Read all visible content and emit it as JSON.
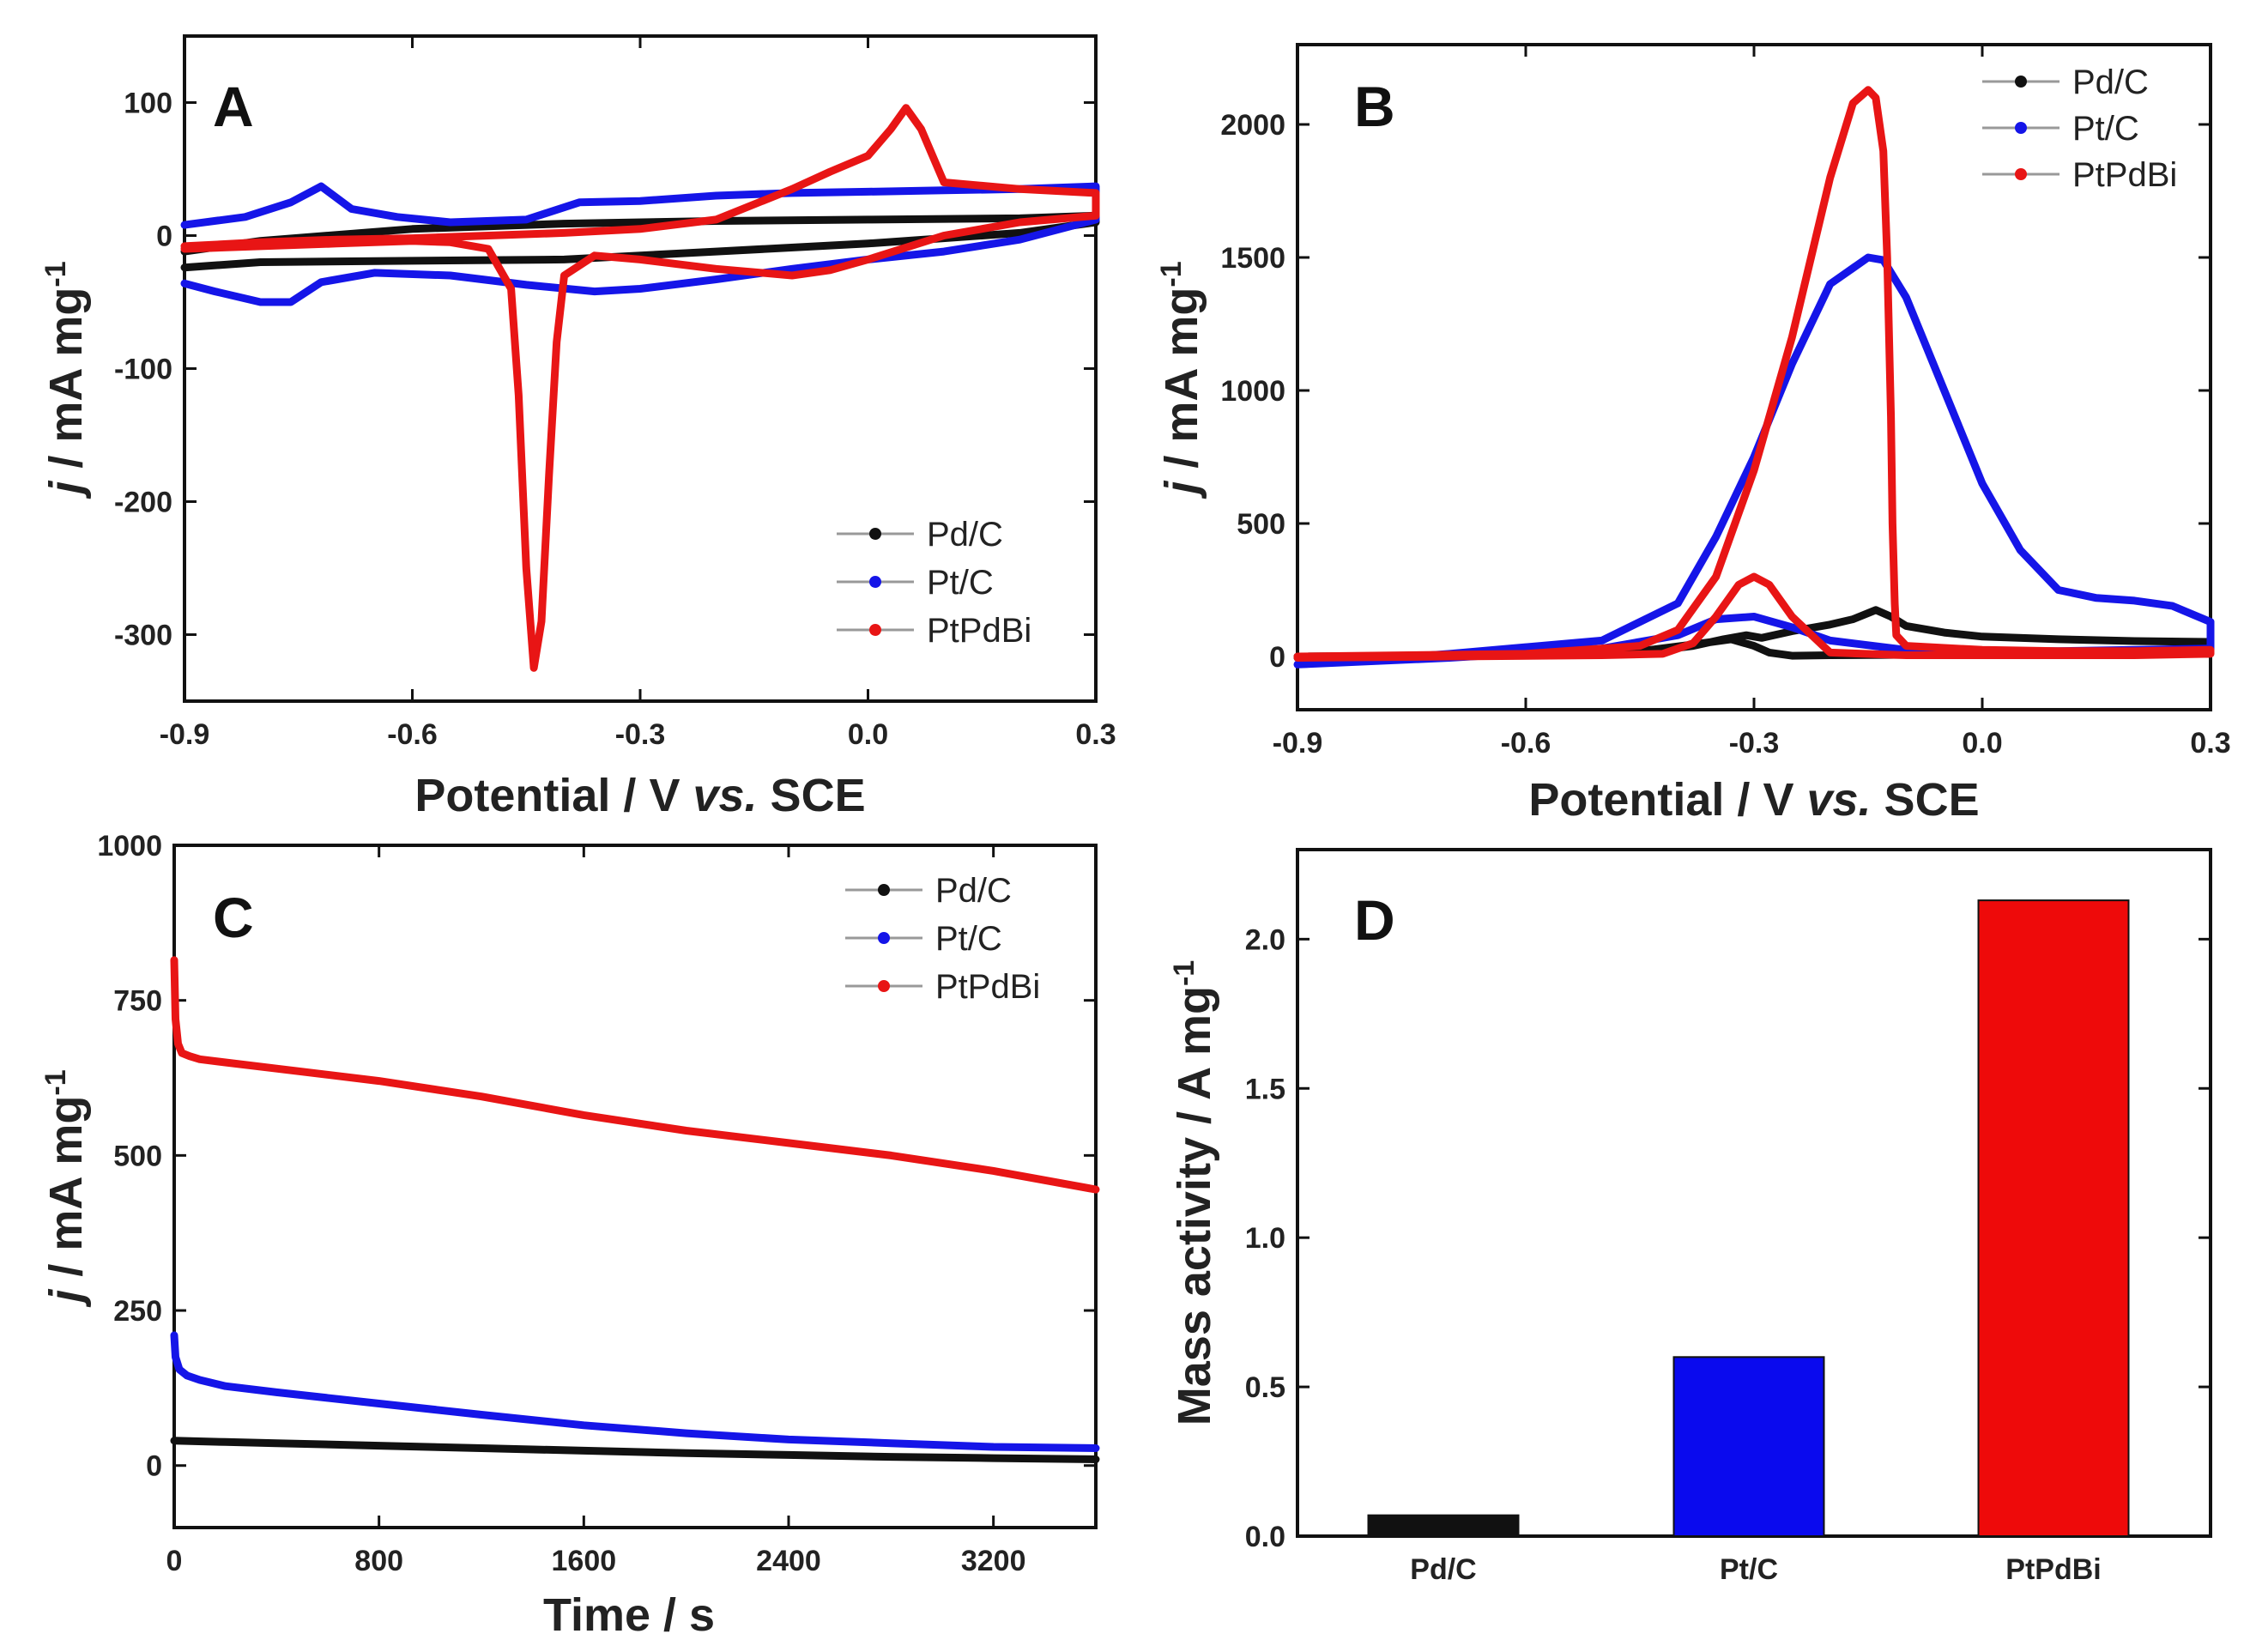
{
  "chart_data": [
    {
      "type": "line",
      "letter": "A",
      "xlabel_pre": "Potential / V ",
      "xlabel_italic": "vs.",
      "xlabel_post": " SCE",
      "ylabel_italic": "j",
      "ylabel_main": " / mA mg",
      "ylabel_sup": "-1",
      "xlim": [
        -0.9,
        0.3
      ],
      "ylim": [
        -350,
        150
      ],
      "xticks": [
        -0.9,
        -0.6,
        -0.3,
        0.0,
        0.3
      ],
      "xtick_labels": [
        "-0.9",
        "-0.6",
        "-0.3",
        "0.0",
        "0.3"
      ],
      "yticks": [
        100,
        0,
        -100,
        -200,
        -300
      ],
      "ytick_labels": [
        "100",
        "0",
        "-100",
        "-200",
        "-300"
      ],
      "legend_position": "bottom-right",
      "series": [
        {
          "name": "Pd/C",
          "color": "#111111",
          "x": [
            -0.9,
            -0.8,
            -0.6,
            -0.4,
            -0.2,
            0.0,
            0.2,
            0.3,
            0.3,
            0.2,
            0.0,
            -0.2,
            -0.4,
            -0.6,
            -0.8,
            -0.9
          ],
          "y": [
            -12,
            -4,
            5,
            9,
            11,
            12,
            13,
            15,
            10,
            2,
            -6,
            -12,
            -18,
            -19,
            -20,
            -24
          ]
        },
        {
          "name": "Pt/C",
          "color": "#1515e8",
          "x": [
            -0.9,
            -0.82,
            -0.76,
            -0.72,
            -0.68,
            -0.62,
            -0.55,
            -0.45,
            -0.38,
            -0.3,
            -0.2,
            -0.1,
            0.0,
            0.1,
            0.2,
            0.3,
            0.3,
            0.2,
            0.1,
            0.0,
            -0.1,
            -0.2,
            -0.3,
            -0.36,
            -0.45,
            -0.55,
            -0.65,
            -0.72,
            -0.76,
            -0.8,
            -0.86,
            -0.9
          ],
          "y": [
            8,
            14,
            25,
            37,
            20,
            14,
            10,
            12,
            25,
            26,
            30,
            32,
            33,
            34,
            35,
            37,
            12,
            -3,
            -12,
            -18,
            -25,
            -33,
            -40,
            -42,
            -37,
            -30,
            -28,
            -35,
            -50,
            -50,
            -42,
            -36
          ]
        },
        {
          "name": "PtPdBi",
          "color": "#e81515",
          "x": [
            -0.9,
            -0.8,
            -0.7,
            -0.6,
            -0.5,
            -0.4,
            -0.3,
            -0.2,
            -0.1,
            -0.05,
            0.0,
            0.03,
            0.05,
            0.07,
            0.1,
            0.2,
            0.3,
            0.3,
            0.2,
            0.1,
            0.0,
            -0.05,
            -0.1,
            -0.2,
            -0.3,
            -0.36,
            -0.4,
            -0.41,
            -0.42,
            -0.43,
            -0.44,
            -0.45,
            -0.46,
            -0.47,
            -0.5,
            -0.55,
            -0.6,
            -0.7,
            -0.8,
            -0.9
          ],
          "y": [
            -8,
            -5,
            -3,
            -2,
            0,
            2,
            5,
            12,
            35,
            48,
            60,
            80,
            96,
            80,
            40,
            35,
            32,
            15,
            10,
            0,
            -18,
            -26,
            -30,
            -25,
            -18,
            -15,
            -30,
            -80,
            -180,
            -290,
            -325,
            -250,
            -120,
            -40,
            -10,
            -5,
            -4,
            -6,
            -8,
            -10
          ]
        }
      ]
    },
    {
      "type": "line",
      "letter": "B",
      "xlabel_pre": "Potential / V ",
      "xlabel_italic": "vs.",
      "xlabel_post": " SCE",
      "ylabel_italic": "j",
      "ylabel_main": " / mA mg",
      "ylabel_sup": "-1",
      "xlim": [
        -0.9,
        0.3
      ],
      "ylim": [
        -200,
        2300
      ],
      "xticks": [
        -0.9,
        -0.6,
        -0.3,
        0.0,
        0.3
      ],
      "xtick_labels": [
        "-0.9",
        "-0.6",
        "-0.3",
        "0.0",
        "0.3"
      ],
      "yticks": [
        0,
        500,
        1000,
        1500,
        2000
      ],
      "ytick_labels": [
        "0",
        "500",
        "1000",
        "1500",
        "2000"
      ],
      "legend_position": "top-right",
      "series": [
        {
          "name": "Pd/C",
          "color": "#111111",
          "x": [
            -0.9,
            -0.6,
            -0.45,
            -0.38,
            -0.34,
            -0.31,
            -0.29,
            -0.25,
            -0.2,
            -0.17,
            -0.14,
            -0.12,
            -0.1,
            -0.05,
            0.0,
            0.1,
            0.2,
            0.3,
            0.3,
            0.2,
            0.0,
            -0.2,
            -0.25,
            -0.28,
            -0.3,
            -0.33,
            -0.38,
            -0.45,
            -0.6,
            -0.9
          ],
          "y": [
            0,
            5,
            15,
            40,
            65,
            80,
            70,
            95,
            120,
            140,
            175,
            150,
            115,
            90,
            75,
            65,
            58,
            55,
            20,
            12,
            8,
            5,
            3,
            15,
            40,
            65,
            45,
            20,
            5,
            -5
          ]
        },
        {
          "name": "Pt/C",
          "color": "#1515e8",
          "x": [
            -0.9,
            -0.7,
            -0.5,
            -0.4,
            -0.35,
            -0.3,
            -0.25,
            -0.2,
            -0.15,
            -0.13,
            -0.1,
            -0.05,
            0.0,
            0.05,
            0.1,
            0.15,
            0.2,
            0.25,
            0.3,
            0.3,
            0.2,
            0.1,
            0.0,
            -0.1,
            -0.2,
            -0.25,
            -0.3,
            -0.35,
            -0.4,
            -0.5,
            -0.7,
            -0.9
          ],
          "y": [
            -30,
            10,
            60,
            200,
            450,
            750,
            1100,
            1400,
            1500,
            1490,
            1350,
            1000,
            650,
            400,
            250,
            220,
            210,
            190,
            130,
            30,
            25,
            20,
            20,
            25,
            60,
            110,
            150,
            140,
            80,
            30,
            -5,
            -30
          ]
        },
        {
          "name": "PtPdBi",
          "color": "#e81515",
          "x": [
            -0.9,
            -0.6,
            -0.45,
            -0.4,
            -0.35,
            -0.3,
            -0.25,
            -0.2,
            -0.17,
            -0.15,
            -0.14,
            -0.13,
            -0.125,
            -0.12,
            -0.118,
            -0.115,
            -0.113,
            -0.1,
            0.0,
            0.1,
            0.2,
            0.3,
            0.3,
            0.2,
            0.0,
            -0.1,
            -0.2,
            -0.25,
            -0.28,
            -0.3,
            -0.32,
            -0.35,
            -0.38,
            -0.42,
            -0.5,
            -0.7,
            -0.9
          ],
          "y": [
            0,
            10,
            40,
            100,
            300,
            700,
            1200,
            1800,
            2080,
            2130,
            2100,
            1900,
            1500,
            900,
            500,
            200,
            80,
            40,
            25,
            20,
            20,
            25,
            10,
            5,
            5,
            5,
            15,
            150,
            270,
            300,
            270,
            150,
            50,
            10,
            5,
            0,
            -5
          ]
        }
      ]
    },
    {
      "type": "line",
      "letter": "C",
      "xlabel_pre": "Time / s",
      "ylabel_italic": "j",
      "ylabel_main": " / mA mg",
      "ylabel_sup": "-1",
      "xlim": [
        0,
        3600
      ],
      "ylim": [
        -100,
        1000
      ],
      "xticks": [
        0,
        800,
        1600,
        2400,
        3200
      ],
      "xtick_labels": [
        "0",
        "800",
        "1600",
        "2400",
        "3200"
      ],
      "yticks": [
        0,
        250,
        500,
        750,
        1000
      ],
      "ytick_labels": [
        "0",
        "250",
        "500",
        "750",
        "1000"
      ],
      "legend_position": "top-right",
      "series": [
        {
          "name": "Pd/C",
          "color": "#111111",
          "x": [
            0,
            200,
            400,
            800,
            1200,
            1600,
            2000,
            2400,
            2800,
            3200,
            3600
          ],
          "y": [
            40,
            38,
            36,
            32,
            28,
            24,
            20,
            17,
            14,
            12,
            10
          ]
        },
        {
          "name": "Pt/C",
          "color": "#1515e8",
          "x": [
            0,
            5,
            20,
            50,
            100,
            200,
            400,
            800,
            1200,
            1600,
            2000,
            2400,
            2800,
            3200,
            3600
          ],
          "y": [
            210,
            175,
            155,
            145,
            138,
            128,
            118,
            100,
            82,
            65,
            52,
            42,
            36,
            30,
            28
          ]
        },
        {
          "name": "PtPdBi",
          "color": "#e81515",
          "x": [
            0,
            5,
            15,
            30,
            60,
            100,
            200,
            400,
            800,
            1200,
            1600,
            2000,
            2400,
            2800,
            3200,
            3600
          ],
          "y": [
            815,
            720,
            680,
            665,
            660,
            655,
            650,
            640,
            620,
            595,
            565,
            540,
            520,
            500,
            475,
            445
          ]
        }
      ]
    },
    {
      "type": "bar",
      "letter": "D",
      "ylabel_main": "Mass activity / A mg",
      "ylabel_sup": "-1",
      "categories": [
        "Pd/C",
        "Pt/C",
        "PtPdBi"
      ],
      "values": [
        0.07,
        0.6,
        2.13
      ],
      "colors": [
        "#111111",
        "#0a0aee",
        "#ee0a0a"
      ],
      "ylim": [
        0,
        2.3
      ],
      "yticks": [
        0.0,
        0.5,
        1.0,
        1.5,
        2.0
      ],
      "ytick_labels": [
        "0.0",
        "0.5",
        "1.0",
        "1.5",
        "2.0"
      ]
    }
  ]
}
